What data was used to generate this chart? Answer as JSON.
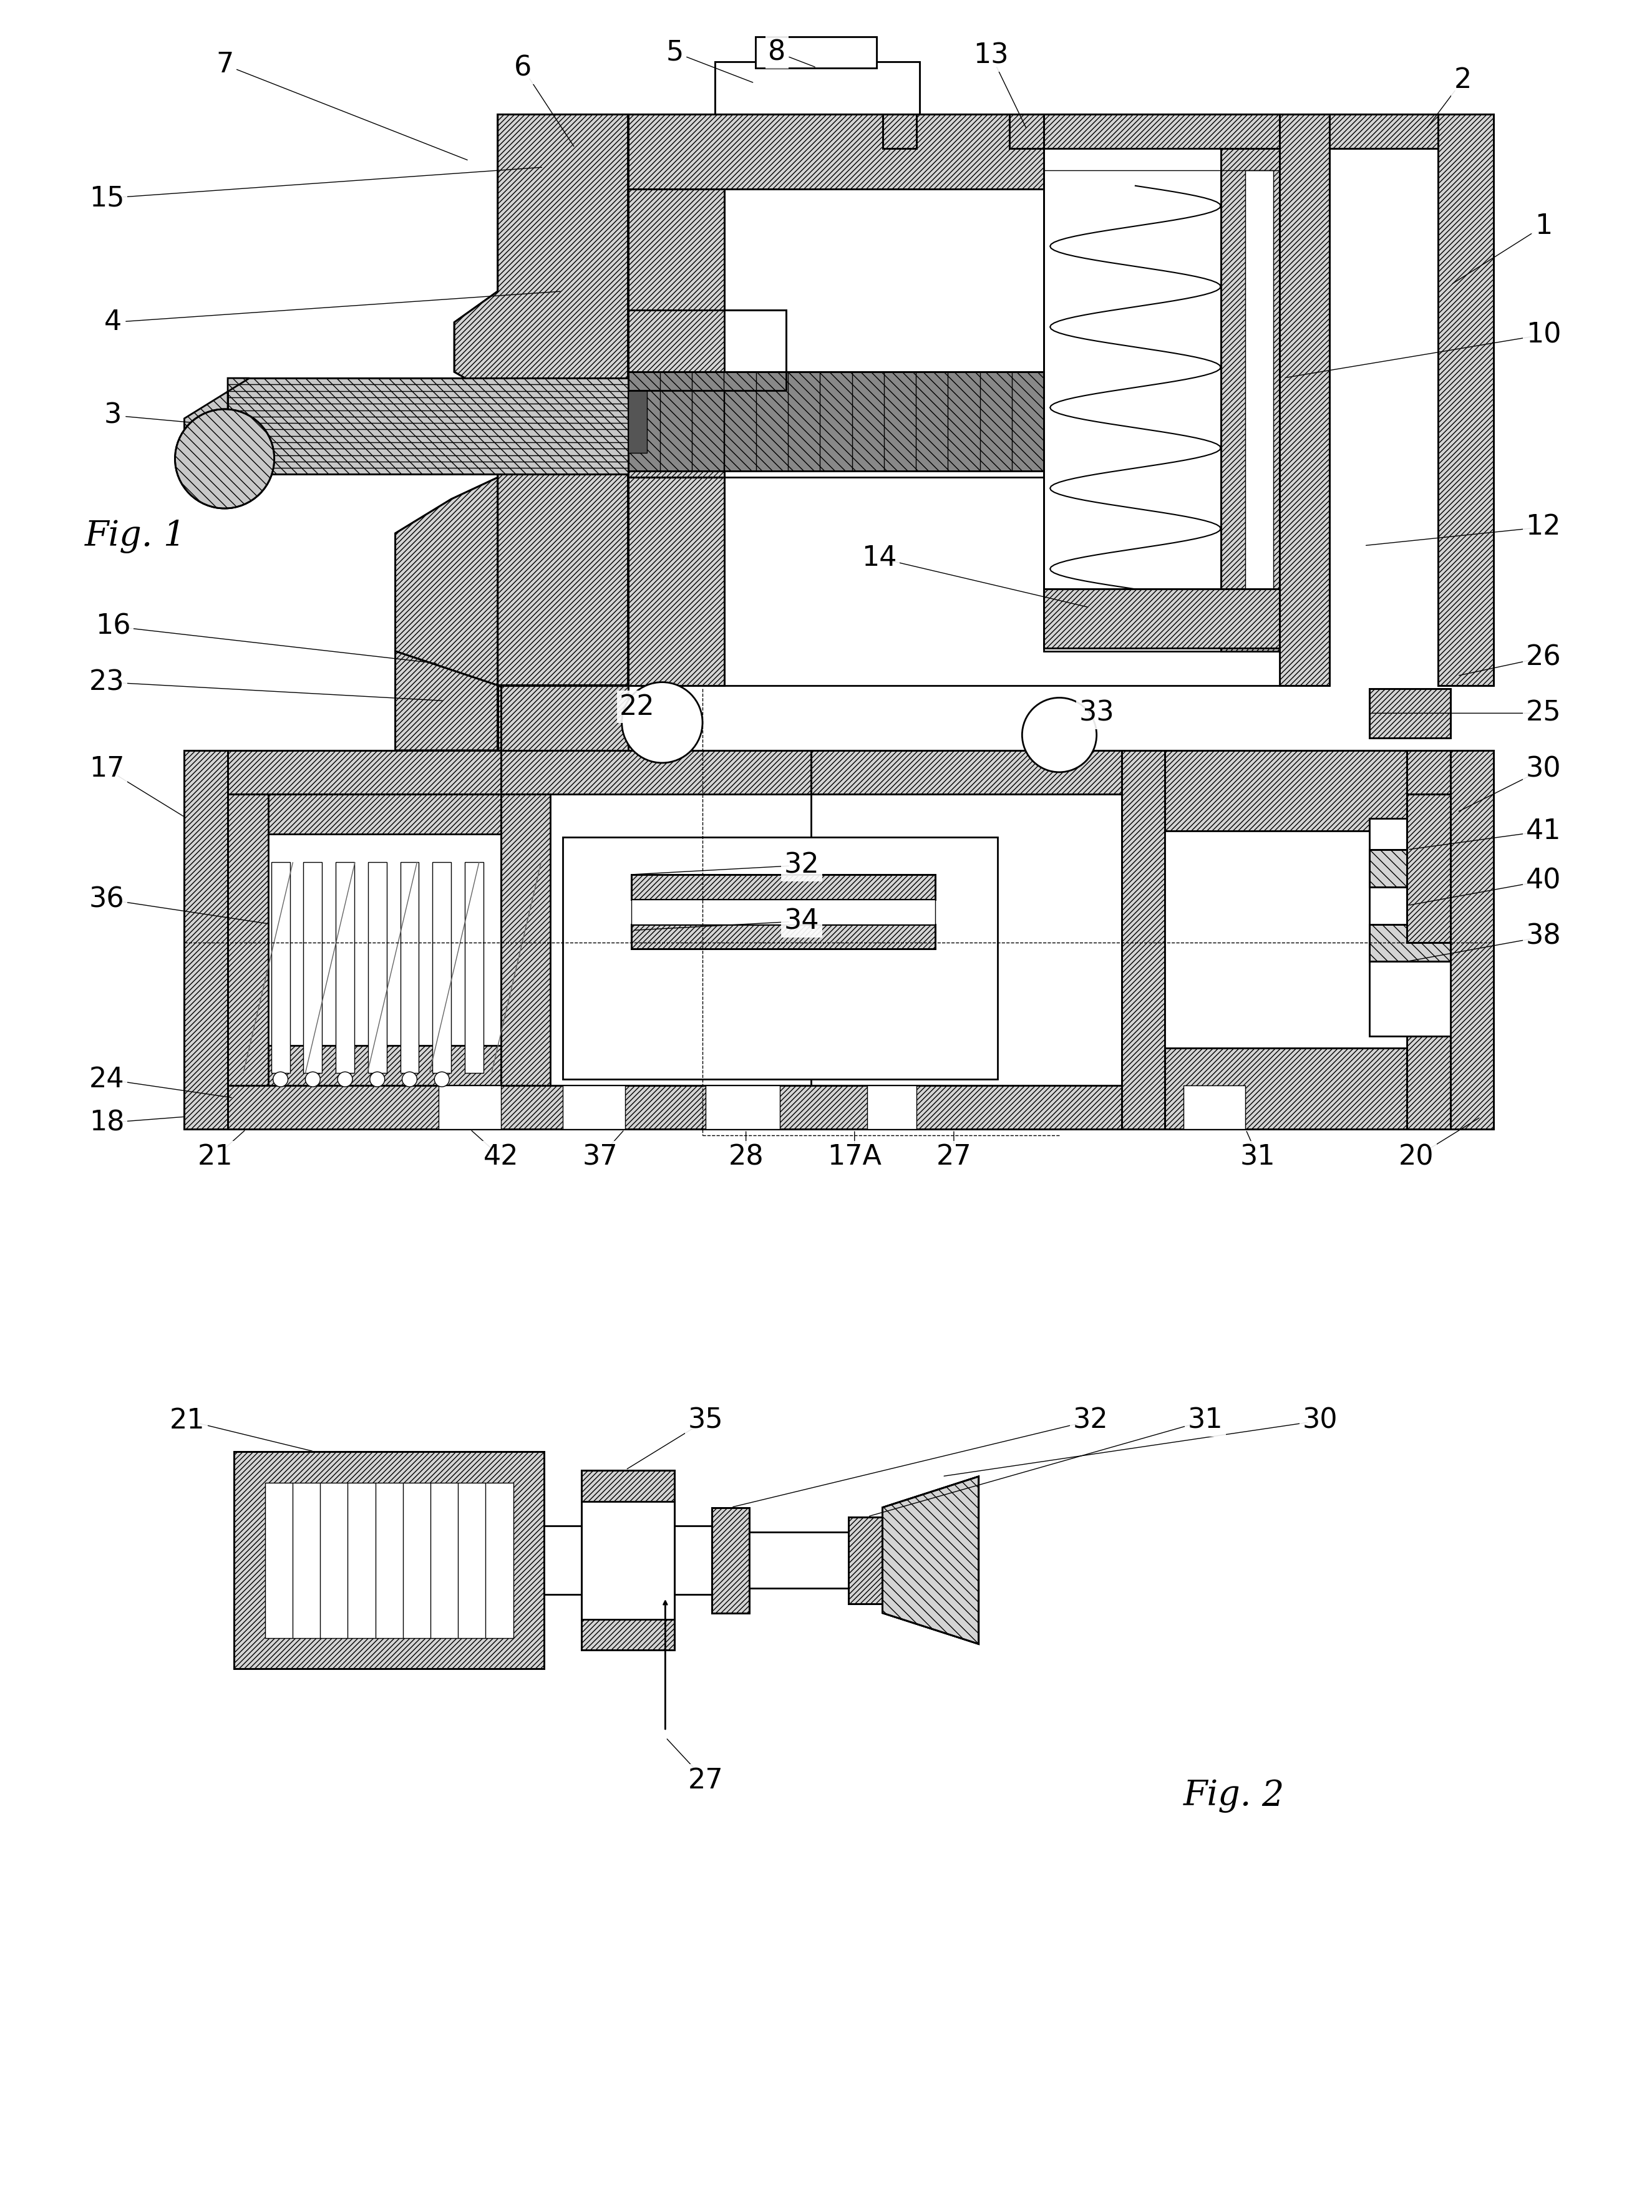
{
  "fig1_label": "Fig. 1",
  "fig2_label": "Fig. 2",
  "background_color": "#ffffff",
  "lw_main": 2.0,
  "lw_thin": 1.0,
  "lw_med": 1.5,
  "ref_fontsize": 32,
  "label_fontsize": 40
}
